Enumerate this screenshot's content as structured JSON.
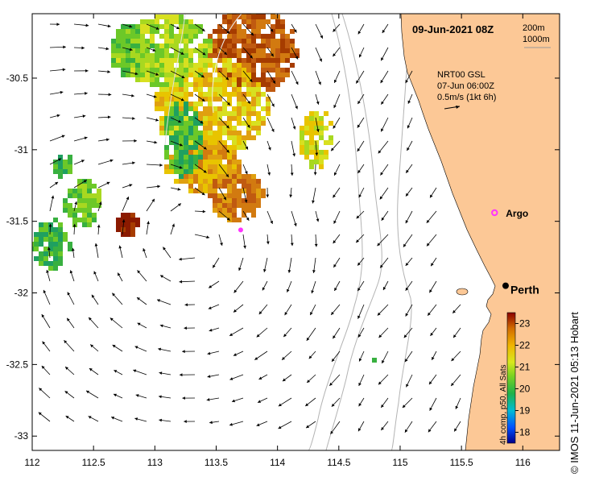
{
  "map": {
    "date_title": "09-Jun-2021 08Z",
    "depth_labels": [
      "200m",
      "1000m"
    ],
    "current_info": {
      "line1": "NRT00 GSL",
      "line2": "07-Jun 06:00Z",
      "line3": "0.5m/s (1kt 6h)"
    },
    "places": [
      {
        "name": "Argo",
        "lon": 115.77,
        "lat": -31.44,
        "color": "#ff33ff"
      },
      {
        "name": "Perth",
        "lon": 115.86,
        "lat": -31.95,
        "color": "#000000"
      }
    ],
    "argo_offshore": {
      "lon": 113.7,
      "lat": -31.56,
      "color": "#ff33ff"
    },
    "lon_ticks": [
      "112",
      "112.5",
      "113",
      "113.5",
      "114",
      "114.5",
      "115",
      "115.5",
      "116"
    ],
    "lat_ticks": [
      "-30.5",
      "-31",
      "-31.5",
      "-32",
      "-32.5",
      "-33"
    ],
    "lon_range": [
      112.0,
      116.3
    ],
    "lat_range": [
      -33.1,
      -30.05
    ],
    "colorbar": {
      "label": "4h comp, p50, All Sats",
      "ticks": [
        "18",
        "19",
        "20",
        "21",
        "22",
        "23"
      ],
      "range": [
        17.5,
        23.5
      ]
    },
    "credit": "© IMOS 11-Jun-2021 05:13 Hobart",
    "land_color": "#fcc896"
  }
}
